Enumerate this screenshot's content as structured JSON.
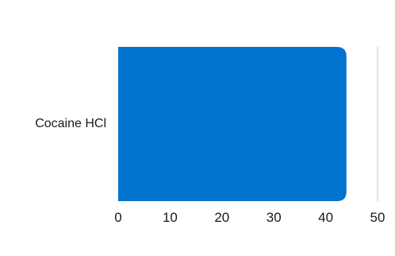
{
  "chart_data": {
    "type": "bar",
    "orientation": "horizontal",
    "categories": [
      "Cocaine HCl"
    ],
    "values": [
      44
    ],
    "xlim": [
      0,
      50
    ],
    "x_ticks": [
      0,
      10,
      20,
      30,
      40,
      50
    ],
    "title": "",
    "xlabel": "",
    "ylabel": "",
    "bar_color": "#0073CF",
    "grid": false,
    "legend": "none"
  }
}
